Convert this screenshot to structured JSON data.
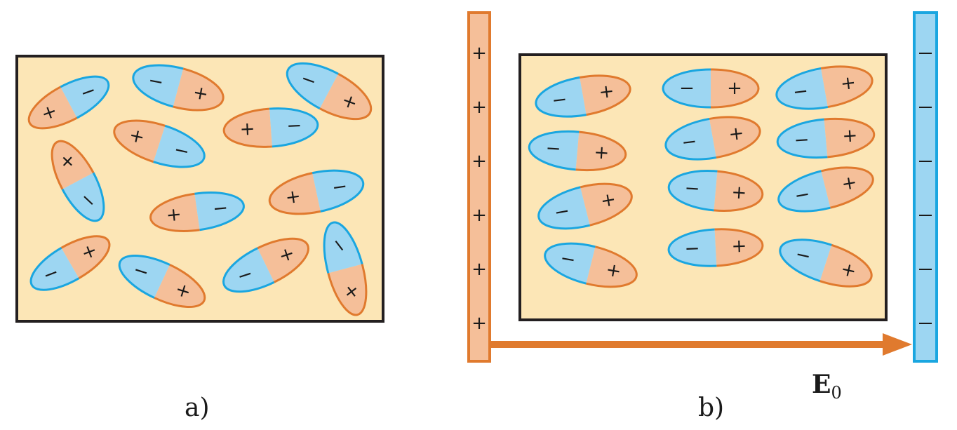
{
  "colors": {
    "medium_fill": "#FCE6B6",
    "frame_stroke": "#231F20",
    "positive_fill": "#F5BF99",
    "positive_stroke": "#E07A2E",
    "negative_fill": "#9DD6F2",
    "negative_stroke": "#1AA6E0",
    "arrow": "#E07A2E"
  },
  "signs": {
    "plus": "+",
    "minus": "−"
  },
  "panel_a": {
    "caption": "a)"
  },
  "panel_b": {
    "caption": "b)",
    "field_label": {
      "main": "E",
      "subscript": "0"
    },
    "positive_plate_sign_count": 6,
    "negative_plate_sign_count": 6
  }
}
